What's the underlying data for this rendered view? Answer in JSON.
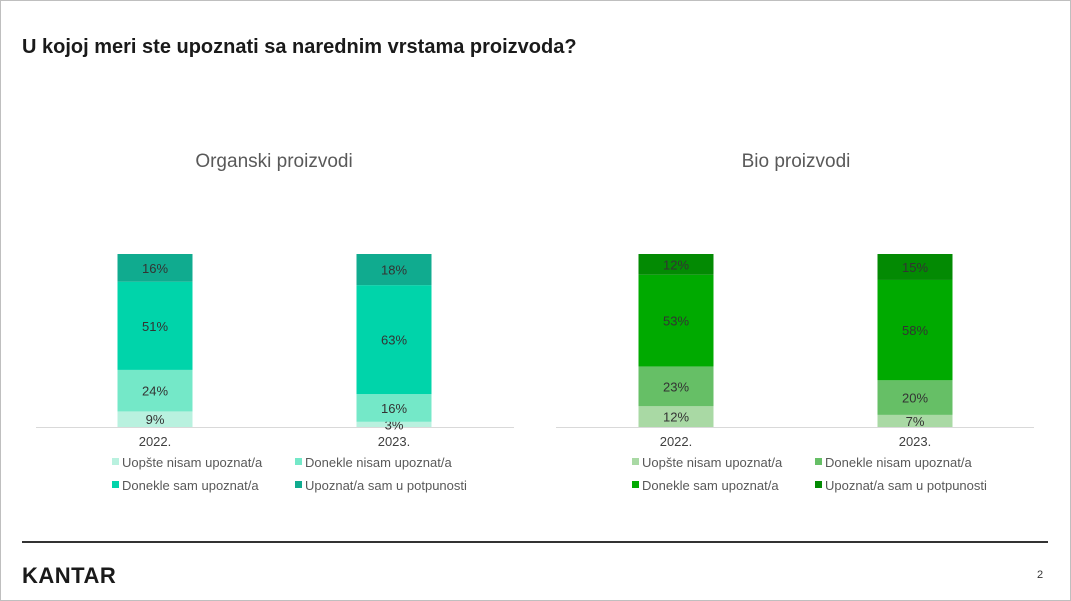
{
  "slide": {
    "title": "U kojoj meri ste upoznati sa narednim vrstama proizvoda?",
    "logo": "KANTAR",
    "page_number": "2"
  },
  "chart_data": [
    {
      "type": "bar",
      "stacked": true,
      "title": "Organski proizvodi",
      "categories": [
        "2022.",
        "2023."
      ],
      "ylim": [
        0,
        100
      ],
      "legend_position": "bottom",
      "series": [
        {
          "name": "Uopšte nisam upoznat/a",
          "values": [
            9,
            3
          ],
          "labels": [
            "9%",
            "3%"
          ],
          "color": "#b9f1df"
        },
        {
          "name": "Donekle nisam upoznat/a",
          "values": [
            24,
            16
          ],
          "labels": [
            "24%",
            "16%"
          ],
          "color": "#74e8c8"
        },
        {
          "name": "Donekle sam upoznat/a",
          "values": [
            51,
            63
          ],
          "labels": [
            "51%",
            "63%"
          ],
          "color": "#00d4aa"
        },
        {
          "name": "Upoznat/a sam u potpunosti",
          "values": [
            16,
            18
          ],
          "labels": [
            "16%",
            "18%"
          ],
          "color": "#10ab8f"
        }
      ]
    },
    {
      "type": "bar",
      "stacked": true,
      "title": "Bio  proizvodi",
      "categories": [
        "2022.",
        "2023."
      ],
      "ylim": [
        0,
        100
      ],
      "legend_position": "bottom",
      "series": [
        {
          "name": "Uopšte nisam upoznat/a",
          "values": [
            12,
            7
          ],
          "labels": [
            "12%",
            "7%"
          ],
          "color": "#a9d9a4"
        },
        {
          "name": "Donekle nisam upoznat/a",
          "values": [
            23,
            20
          ],
          "labels": [
            "23%",
            "20%"
          ],
          "color": "#66bf66"
        },
        {
          "name": "Donekle sam upoznat/a",
          "values": [
            53,
            58
          ],
          "labels": [
            "53%",
            "58%"
          ],
          "color": "#00aa00"
        },
        {
          "name": "Upoznat/a sam u potpunosti",
          "values": [
            12,
            15
          ],
          "labels": [
            "12%",
            "15%"
          ],
          "color": "#038a03"
        }
      ]
    }
  ]
}
